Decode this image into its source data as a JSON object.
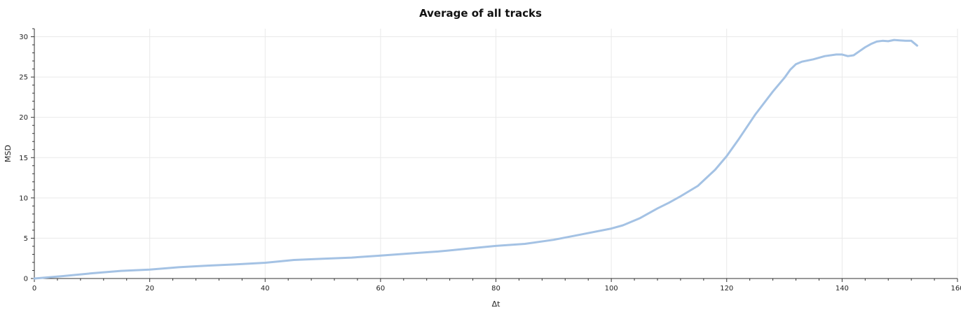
{
  "chart_data": {
    "type": "line",
    "title": "Average of all tracks",
    "xlabel": "Δt",
    "ylabel": "MSD",
    "xlim": [
      0,
      160
    ],
    "ylim": [
      0,
      31
    ],
    "xticks": [
      0,
      20,
      40,
      60,
      80,
      100,
      120,
      140,
      160
    ],
    "yticks": [
      0,
      5,
      10,
      15,
      20,
      25,
      30
    ],
    "grid": true,
    "legend": "none",
    "line_color": "#a4c2e4",
    "series": [
      {
        "x": [
          0,
          5,
          10,
          15,
          20,
          25,
          30,
          35,
          40,
          45,
          50,
          55,
          60,
          65,
          70,
          75,
          80,
          85,
          90,
          95,
          100,
          102,
          105,
          108,
          110,
          112,
          115,
          118,
          120,
          122,
          125,
          128,
          130,
          131,
          132,
          133,
          135,
          137,
          139,
          140,
          141,
          142,
          143,
          144,
          145,
          146,
          147,
          148,
          149,
          150,
          151,
          152,
          153
        ],
        "y": [
          0,
          0.3,
          0.65,
          0.95,
          1.1,
          1.4,
          1.6,
          1.75,
          1.95,
          2.3,
          2.45,
          2.6,
          2.85,
          3.1,
          3.35,
          3.7,
          4.05,
          4.3,
          4.8,
          5.5,
          6.2,
          6.6,
          7.5,
          8.7,
          9.4,
          10.2,
          11.5,
          13.5,
          15.2,
          17.2,
          20.4,
          23.2,
          24.9,
          25.9,
          26.6,
          26.9,
          27.2,
          27.6,
          27.8,
          27.8,
          27.6,
          27.7,
          28.2,
          28.7,
          29.1,
          29.4,
          29.5,
          29.45,
          29.6,
          29.55,
          29.5,
          29.5,
          28.9
        ]
      }
    ]
  }
}
